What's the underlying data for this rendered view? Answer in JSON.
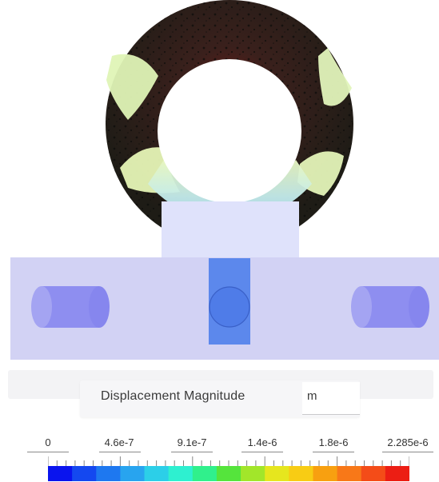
{
  "legend": {
    "title": "Displacement Magnitude",
    "unit": "m",
    "ticks": [
      "0",
      "4.6e-7",
      "9.1e-7",
      "1.4e-6",
      "1.8e-6",
      "2.285e-6"
    ]
  },
  "colorbar": {
    "colors": [
      "#0a14ee",
      "#1448f0",
      "#1e78f0",
      "#28a4ef",
      "#2ccfe8",
      "#2ef0d0",
      "#30f08c",
      "#55e43c",
      "#a2e62a",
      "#e6e61e",
      "#f8cc14",
      "#f8a010",
      "#f87818",
      "#f44c18",
      "#ec1e14"
    ]
  },
  "model_colors": {
    "body": "#d2d2f4",
    "pins": "#8e8ef0",
    "center_block": "#5c88ec",
    "ring_dark": "#2a2220",
    "ring_top": "#5a1a16",
    "ring_low_displacement": "#dff4b6",
    "ring_inner": "#b8e8f4"
  }
}
